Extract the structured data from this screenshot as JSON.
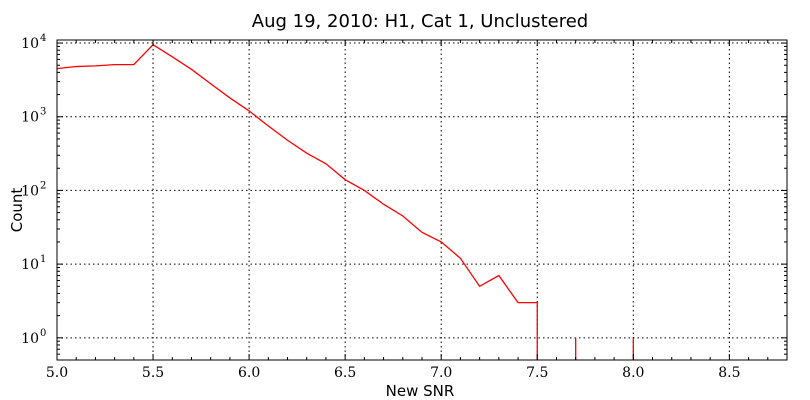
{
  "chart_data": {
    "type": "line",
    "title": "Aug 19, 2010: H1, Cat 1, Unclustered",
    "xlabel": "New SNR",
    "ylabel": "Count",
    "xlim": [
      5.0,
      8.8
    ],
    "ylim": [
      0.5,
      11000
    ],
    "yscale": "log",
    "grid": true,
    "line_color": "#ff0000",
    "x_ticks": [
      5.0,
      5.5,
      6.0,
      6.5,
      7.0,
      7.5,
      8.0,
      8.5
    ],
    "x_tick_labels": [
      "5.0",
      "5.5",
      "6.0",
      "6.5",
      "7.0",
      "7.5",
      "8.0",
      "8.5"
    ],
    "y_ticks": [
      1,
      10,
      100,
      1000,
      10000
    ],
    "y_tick_labels": [
      {
        "base": "10",
        "exp": "0"
      },
      {
        "base": "10",
        "exp": "1"
      },
      {
        "base": "10",
        "exp": "2"
      },
      {
        "base": "10",
        "exp": "3"
      },
      {
        "base": "10",
        "exp": "4"
      }
    ],
    "series": [
      {
        "x": [
          5.0,
          5.1,
          5.2,
          5.3,
          5.4,
          5.5,
          5.6,
          5.7,
          5.8,
          5.9,
          6.0,
          6.1,
          6.2,
          6.3,
          6.4,
          6.5,
          6.6,
          6.7,
          6.8,
          6.9,
          7.0,
          7.1,
          7.2,
          7.3,
          7.4,
          7.5
        ],
        "y": [
          4500,
          4800,
          4900,
          5100,
          5100,
          9500,
          6500,
          4400,
          2800,
          1800,
          1200,
          750,
          480,
          320,
          230,
          140,
          100,
          65,
          45,
          27,
          20,
          12,
          5,
          7,
          3,
          3
        ]
      },
      {
        "x": [
          7.7
        ],
        "y": [
          1
        ]
      },
      {
        "x": [
          8.0
        ],
        "y": [
          1
        ]
      }
    ]
  }
}
